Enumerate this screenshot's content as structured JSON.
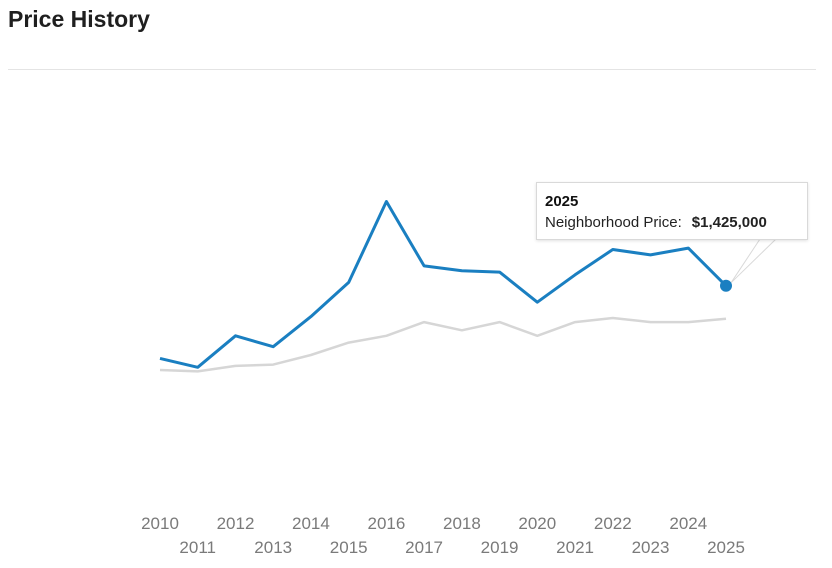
{
  "header": {
    "title": "Price History"
  },
  "tooltip": {
    "year": "2025",
    "label": "Neighborhood Price:",
    "value": "$1,425,000"
  },
  "colors": {
    "primary_series": "#1a7fc1",
    "secondary_series": "#d6d6d6",
    "tick_text": "#7a7a7a"
  },
  "chart_data": {
    "type": "line",
    "title": "Price History",
    "x": [
      2010,
      2011,
      2012,
      2013,
      2014,
      2015,
      2016,
      2017,
      2018,
      2019,
      2020,
      2021,
      2022,
      2023,
      2024,
      2025
    ],
    "tick_labels": [
      "2010",
      "2011",
      "2012",
      "2013",
      "2014",
      "2015",
      "2016",
      "2017",
      "2018",
      "2019",
      "2020",
      "2021",
      "2022",
      "2023",
      "2024",
      "2025"
    ],
    "series": [
      {
        "values": [
          895000,
          830000,
          1060000,
          980000,
          1200000,
          1450000,
          2040000,
          1570000,
          1535000,
          1525000,
          1305000,
          1505000,
          1690000,
          1650000,
          1700000,
          1425000
        ]
      },
      {
        "values": [
          810000,
          800000,
          840000,
          850000,
          920000,
          1010000,
          1060000,
          1160000,
          1100000,
          1160000,
          1060000,
          1160000,
          1190000,
          1160000,
          1160000,
          1185000
        ]
      }
    ],
    "highlight": {
      "series_index": 0,
      "x": 2025,
      "value": 1425000
    },
    "ylim": [
      0,
      3000000
    ],
    "grid": false,
    "legend": "none"
  }
}
